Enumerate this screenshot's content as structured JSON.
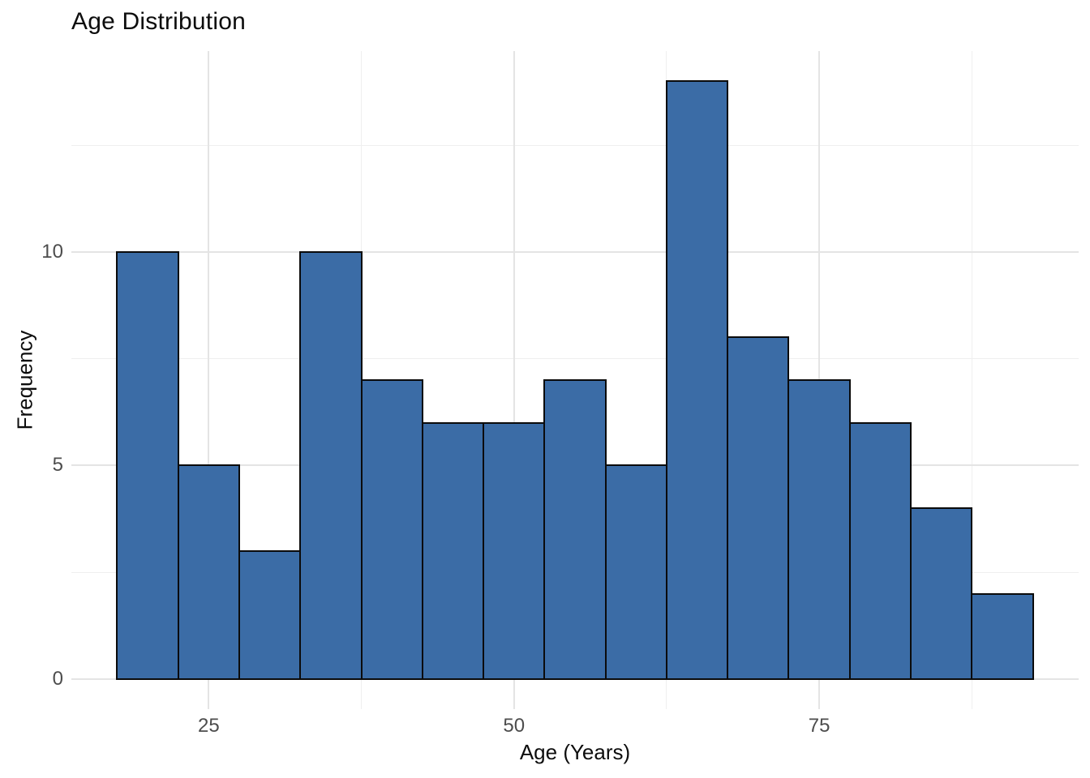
{
  "colors": {
    "background": "#FFFFFF",
    "bar_fill": "#3B6CA6",
    "bar_stroke": "#0B0B0B",
    "grid_major": "#E4E4E4",
    "grid_minor": "#EFEFEF",
    "tick_label": "#4D4D4D",
    "text": "#0D0D0D"
  },
  "chart_data": {
    "type": "bar",
    "subtype": "histogram",
    "title": "Age Distribution",
    "xlabel": "Age (Years)",
    "ylabel": "Frequency",
    "bin_width": 5,
    "bin_start": 17.5,
    "bin_edges": [
      17.5,
      22.5,
      27.5,
      32.5,
      37.5,
      42.5,
      47.5,
      52.5,
      57.5,
      62.5,
      67.5,
      72.5,
      77.5,
      82.5,
      87.5,
      92.5
    ],
    "counts": [
      10,
      5,
      3,
      10,
      7,
      6,
      6,
      7,
      5,
      14,
      8,
      7,
      6,
      4,
      2
    ],
    "x_ticks": [
      {
        "value": 25,
        "label": "25"
      },
      {
        "value": 50,
        "label": "50"
      },
      {
        "value": 75,
        "label": "75"
      }
    ],
    "y_ticks": [
      {
        "value": 0,
        "label": "0"
      },
      {
        "value": 5,
        "label": "5"
      },
      {
        "value": 10,
        "label": "10"
      }
    ],
    "x_minor_gridlines": [
      37.5,
      62.5,
      87.5
    ],
    "y_minor_gridlines": [
      2.5,
      7.5,
      12.5
    ],
    "xlim": [
      13.75,
      96.25
    ],
    "ylim": [
      -0.7,
      14.7
    ],
    "grid": true,
    "legend": false
  }
}
